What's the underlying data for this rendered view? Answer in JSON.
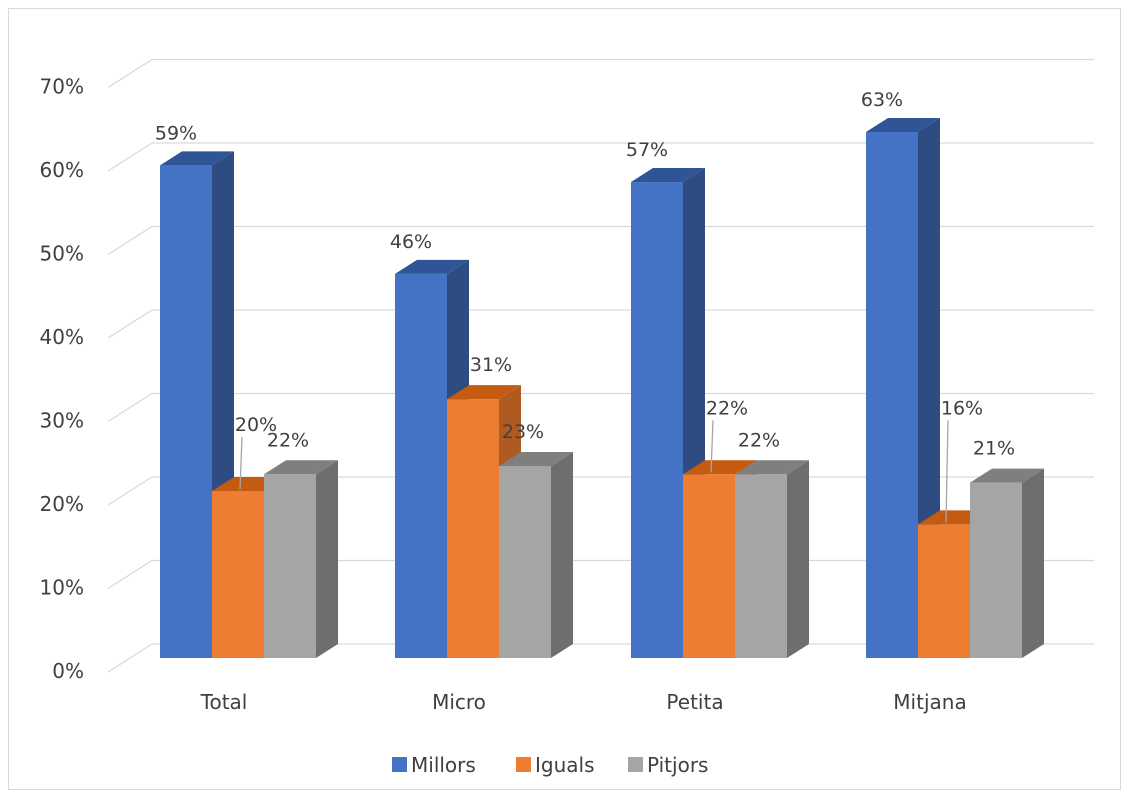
{
  "chart_data": {
    "type": "bar",
    "style": "3d-clustered-column",
    "categories": [
      "Total",
      "Micro",
      "Petita",
      "Mitjana"
    ],
    "series": [
      {
        "name": "Millors",
        "values": [
          59,
          46,
          57,
          63
        ],
        "labels": [
          "59%",
          "46%",
          "57%",
          "63%"
        ],
        "color": "#4472C4",
        "side_color": "#2E4B82",
        "top_color": "#2F5597"
      },
      {
        "name": "Iguals",
        "values": [
          20,
          31,
          22,
          16
        ],
        "labels": [
          "20%",
          "31%",
          "22%",
          "16%"
        ],
        "color": "#ED7D31",
        "side_color": "#AE5A21",
        "top_color": "#C55A11"
      },
      {
        "name": "Pitjors",
        "values": [
          22,
          23,
          22,
          21
        ],
        "labels": [
          "22%",
          "23%",
          "22%",
          "21%"
        ],
        "color": "#A5A5A5",
        "side_color": "#6E6E6E",
        "top_color": "#7F7F7F"
      }
    ],
    "yticks": [
      "0%",
      "10%",
      "20%",
      "30%",
      "40%",
      "50%",
      "60%",
      "70%"
    ],
    "ylim": [
      0,
      70
    ],
    "grid": true,
    "legend_position": "bottom",
    "grid_color": "#d9d9d9"
  }
}
